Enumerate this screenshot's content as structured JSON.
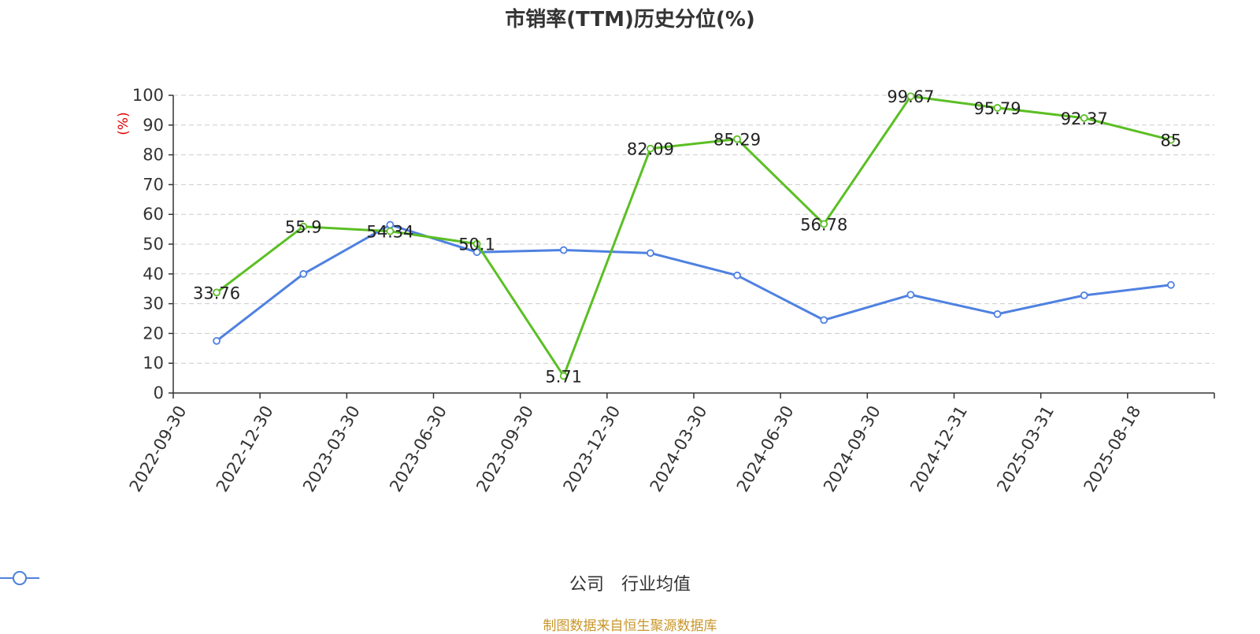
{
  "title": "市销率(TTM)历史分位(%)",
  "footer": "制图数据来自恒生聚源数据库",
  "colors": {
    "company": "#5bbf24",
    "industry": "#4f81e0",
    "ylabel": "#e00000"
  },
  "chart_data": {
    "type": "line",
    "title": "市销率(TTM)历史分位(%)",
    "ylabel": "(%)",
    "ylim": [
      0,
      100
    ],
    "yticks": [
      0,
      10,
      20,
      30,
      40,
      50,
      60,
      70,
      80,
      90,
      100
    ],
    "grid": true,
    "legend_position": "bottom-center",
    "categories": [
      "2022-09-30",
      "2022-12-30",
      "2023-03-30",
      "2023-06-30",
      "2023-09-30",
      "2023-12-30",
      "2024-03-30",
      "2024-06-30",
      "2024-09-30",
      "2024-12-31",
      "2025-03-31",
      "2025-08-18"
    ],
    "series": [
      {
        "name": "公司",
        "values": [
          33.76,
          55.9,
          54.34,
          50.1,
          5.71,
          82.09,
          85.29,
          56.78,
          99.67,
          95.79,
          92.37,
          85
        ],
        "labels": true
      },
      {
        "name": "行业均值",
        "values": [
          17.5,
          40.0,
          56.5,
          47.3,
          48.0,
          47.0,
          39.5,
          24.5,
          33.0,
          26.5,
          32.8,
          36.3
        ],
        "labels": false
      }
    ]
  }
}
